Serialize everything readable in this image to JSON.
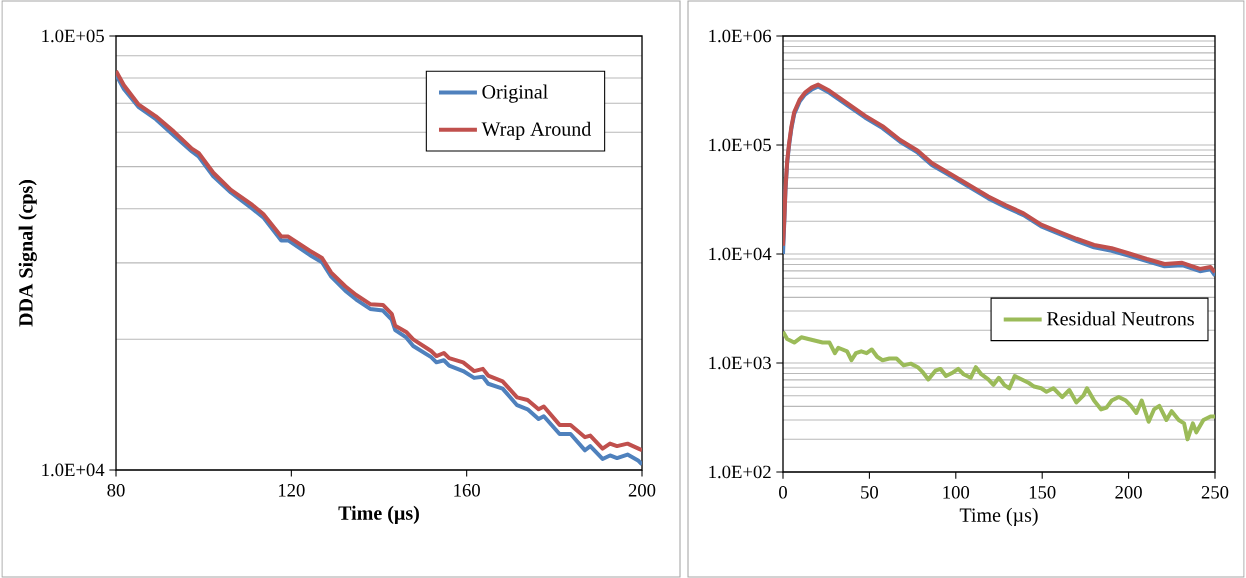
{
  "chart_data": [
    {
      "type": "line",
      "xlabel": "Time (µs)",
      "ylabel": "DDA Signal (cps)",
      "log": "y",
      "grid": "y",
      "legend": "top right",
      "xlim": [
        80,
        200
      ],
      "xticks": [
        80,
        120,
        160,
        200
      ],
      "ylim": [
        10000,
        100000
      ],
      "yticks": [
        {
          "value": 10000,
          "label": "1.0E+04"
        },
        {
          "value": 100000,
          "label": "1.0E+05"
        }
      ],
      "x": [
        80,
        81.8,
        85.1,
        89.1,
        93.2,
        97.3,
        98.9,
        102.2,
        106.2,
        111.1,
        113.6,
        117.7,
        119.3,
        124.2,
        127.0,
        129.1,
        132.3,
        134.8,
        138.0,
        140.9,
        142.9,
        143.7,
        146.2,
        147.8,
        151.9,
        153.1,
        154.8,
        156.0,
        159.2,
        161.7,
        163.7,
        164.9,
        168.2,
        171.5,
        173.9,
        176.4,
        177.6,
        181.2,
        183.7,
        187.0,
        188.2,
        191.0,
        192.7,
        194.3,
        196.7,
        199.2,
        200
      ],
      "series": [
        {
          "name": "Original",
          "color": "#4f81bd",
          "values": [
            81500,
            75500,
            68700,
            64300,
            59000,
            54200,
            52700,
            47500,
            43600,
            40000,
            38200,
            33800,
            33800,
            31300,
            30100,
            27900,
            25900,
            24700,
            23500,
            23300,
            22200,
            21000,
            20200,
            19300,
            18200,
            17700,
            17900,
            17400,
            16900,
            16300,
            16400,
            15800,
            15400,
            14100,
            13800,
            13100,
            13300,
            12100,
            12100,
            11100,
            11350,
            10600,
            10800,
            10650,
            10850,
            10500,
            10300
          ]
        },
        {
          "name": "Wrap Around",
          "color": "#c0504d",
          "values": [
            83000,
            77000,
            69600,
            65300,
            60200,
            55000,
            53700,
            48400,
            44200,
            40800,
            38900,
            34500,
            34500,
            32000,
            30800,
            28500,
            26500,
            25300,
            24100,
            24000,
            22900,
            21500,
            20800,
            20000,
            18800,
            18300,
            18600,
            18100,
            17700,
            16900,
            17100,
            16500,
            16000,
            14700,
            14500,
            13800,
            14000,
            12700,
            12700,
            11900,
            12000,
            11200,
            11500,
            11350,
            11500,
            11200,
            11100
          ]
        }
      ]
    },
    {
      "type": "line",
      "xlabel": "Time (µs)",
      "log": "y",
      "grid": "y",
      "legend": "right",
      "xlim": [
        0,
        250
      ],
      "xticks": [
        0,
        50,
        100,
        150,
        200,
        250
      ],
      "ylim": [
        100,
        1000000
      ],
      "yticks": [
        {
          "value": 100,
          "label": "1.0E+02"
        },
        {
          "value": 1000,
          "label": "1.0E+03"
        },
        {
          "value": 10000,
          "label": "1.0E+04"
        },
        {
          "value": 100000,
          "label": "1.0E+05"
        },
        {
          "value": 1000000,
          "label": "1.0E+06"
        }
      ],
      "series": [
        {
          "color": "#4f81bd",
          "x": [
            0,
            0.8,
            1.4,
            2.4,
            3.5,
            4.9,
            6.5,
            9.6,
            12.7,
            16.7,
            20.4,
            26.9,
            37.1,
            47.4,
            57.6,
            67.8,
            78.0,
            86.1,
            98.4,
            108.6,
            118.8,
            129.0,
            139.2,
            149.4,
            159.6,
            169.8,
            180.0,
            190.2,
            200.4,
            210.6,
            220.8,
            231.0,
            241.3,
            247.4,
            250
          ],
          "values": [
            10000,
            20700,
            37500,
            68000,
            98900,
            143000,
            193000,
            250000,
            290000,
            324000,
            344000,
            301000,
            232000,
            179000,
            143000,
            107000,
            85100,
            65600,
            50500,
            40400,
            32400,
            26900,
            22700,
            17900,
            15400,
            13200,
            11500,
            10700,
            9600,
            8600,
            7700,
            7900,
            6950,
            7250,
            6320
          ]
        },
        {
          "color": "#c0504d",
          "x": [
            0,
            0.8,
            1.4,
            2.4,
            3.5,
            4.9,
            6.5,
            9.6,
            12.7,
            16.7,
            20.4,
            26.9,
            37.1,
            47.4,
            57.6,
            67.8,
            78.0,
            86.1,
            98.4,
            108.6,
            118.8,
            129.0,
            139.2,
            149.4,
            159.6,
            169.8,
            180.0,
            190.2,
            200.4,
            210.6,
            220.8,
            231.0,
            241.3,
            247.4,
            250
          ],
          "values": [
            11900,
            21600,
            39100,
            70900,
            103000,
            149000,
            201000,
            260000,
            302000,
            338000,
            358000,
            314000,
            242000,
            186000,
            149000,
            111000,
            88600,
            68300,
            52600,
            42100,
            33700,
            28000,
            23600,
            18600,
            16000,
            13800,
            12100,
            11300,
            10100,
            9000,
            8100,
            8300,
            7300,
            7600,
            6800
          ]
        },
        {
          "name": "Residual Neutrons",
          "color": "#9bbb59",
          "x": [
            0,
            2.4,
            6.5,
            10.6,
            14.7,
            18.8,
            22.9,
            26.9,
            30.0,
            32.0,
            37.1,
            39.6,
            42.2,
            45.3,
            48.4,
            51.4,
            54.5,
            57.6,
            61.6,
            65.7,
            69.8,
            73.9,
            78.0,
            81.0,
            84.1,
            88.2,
            91.2,
            94.3,
            98.4,
            101.4,
            104.5,
            108.6,
            111.6,
            114.7,
            118.8,
            121.8,
            124.9,
            128.0,
            131.0,
            134.1,
            138.2,
            142.3,
            145.3,
            149.4,
            152.5,
            156.5,
            161.6,
            165.7,
            169.8,
            173.9,
            175.9,
            180.0,
            184.1,
            187.2,
            190.2,
            194.3,
            198.4,
            201.4,
            204.5,
            207.6,
            211.6,
            214.7,
            217.8,
            221.9,
            224.9,
            229.0,
            232.1,
            234.1,
            237.2,
            239.2,
            243.3,
            247.4,
            250
          ],
          "values": [
            1930,
            1660,
            1540,
            1720,
            1660,
            1600,
            1540,
            1540,
            1230,
            1380,
            1280,
            1060,
            1230,
            1280,
            1230,
            1330,
            1140,
            1060,
            1100,
            1100,
            950,
            986,
            915,
            819,
            706,
            850,
            882,
            760,
            819,
            882,
            789,
            732,
            915,
            789,
            706,
            631,
            732,
            631,
            586,
            760,
            706,
            655,
            608,
            586,
            544,
            586,
            487,
            565,
            435,
            505,
            586,
            452,
            375,
            389,
            452,
            487,
            452,
            404,
            348,
            452,
            289,
            375,
            404,
            300,
            361,
            300,
            279,
            199,
            279,
            231,
            300,
            323,
            323
          ]
        }
      ]
    }
  ]
}
